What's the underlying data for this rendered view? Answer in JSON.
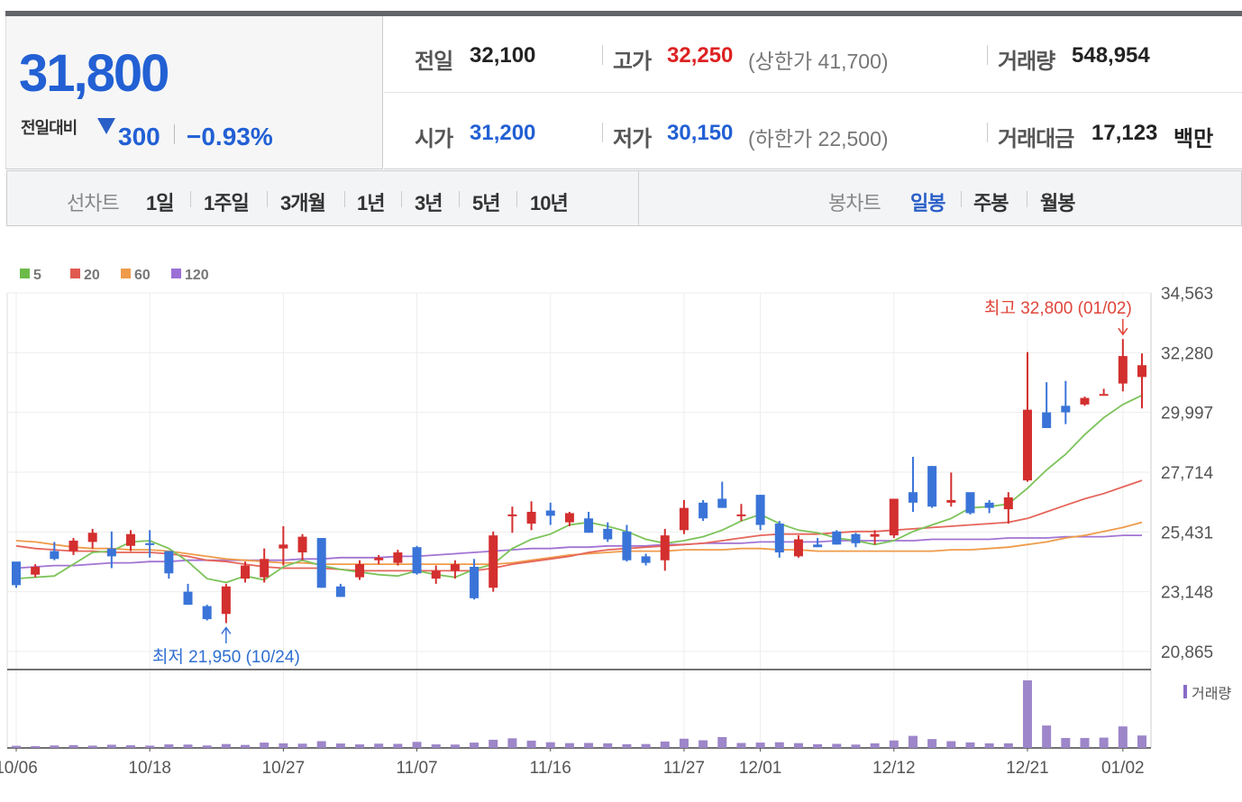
{
  "header": {
    "price": "31,800",
    "change_label": "전일대비",
    "change": "300",
    "change_pct": "−0.93%",
    "direction": "down",
    "prev_label": "전일",
    "prev": "32,100",
    "open_label": "시가",
    "open": "31,200",
    "high_label": "고가",
    "high": "32,250",
    "upper_limit_text": "(상한가 41,700)",
    "low_label": "저가",
    "low": "30,150",
    "lower_limit_text": "(하한가 22,500)",
    "volume_label": "거래량",
    "volume": "548,954",
    "amount_label": "거래대금",
    "amount": "17,123",
    "amount_unit": "백만"
  },
  "line_tabs": {
    "label": "선차트",
    "items": [
      "1일",
      "1주일",
      "3개월",
      "1년",
      "3년",
      "5년",
      "10년"
    ]
  },
  "candle_tabs": {
    "label": "봉차트",
    "items": [
      "일봉",
      "주봉",
      "월봉"
    ],
    "active": 0
  },
  "colors": {
    "up": "#d32f2f",
    "down": "#3a74d8",
    "ma5": "#7cc35a",
    "ma20": "#e5655a",
    "ma60": "#ef9b4a",
    "ma120": "#a274d4",
    "volume": "#9d86c9",
    "accent_blue": "#2260d4"
  },
  "chart_data": {
    "type": "candlestick",
    "legend": [
      {
        "name": "5",
        "color": "#6cbb4a"
      },
      {
        "name": "20",
        "color": "#e05a4f"
      },
      {
        "name": "60",
        "color": "#ef9b4a"
      },
      {
        "name": "120",
        "color": "#9b6fd6"
      }
    ],
    "y_ticks": [
      "34,563",
      "32,280",
      "29,997",
      "27,714",
      "25,431",
      "23,148",
      "20,865"
    ],
    "ylim": [
      20865,
      34563
    ],
    "x_ticks": [
      "10/06",
      "10/18",
      "10/27",
      "11/07",
      "11/16",
      "11/27",
      "12/01",
      "12/12",
      "12/21",
      "01/02"
    ],
    "x_tick_index": [
      0,
      7,
      14,
      21,
      28,
      35,
      39,
      46,
      53,
      58
    ],
    "volume_label": "거래량",
    "max_annotation": "최고 32,800 (01/02)",
    "max_index": 58,
    "max_value": 32800,
    "min_annotation": "최저 21,950 (10/24)",
    "min_index": 11,
    "min_value": 21950,
    "candles": [
      [
        24300,
        24200,
        23300,
        23400
      ],
      [
        23800,
        24200,
        23700,
        24100
      ],
      [
        24700,
        25050,
        24350,
        24400
      ],
      [
        24700,
        25200,
        24550,
        25100
      ],
      [
        25050,
        25550,
        24800,
        25400
      ],
      [
        24800,
        25450,
        24050,
        24500
      ],
      [
        24900,
        25500,
        24700,
        25350
      ],
      [
        25000,
        25500,
        24450,
        24950
      ],
      [
        24700,
        24700,
        23650,
        23850
      ],
      [
        23150,
        23450,
        22650,
        22650
      ],
      [
        22600,
        22650,
        22050,
        22100
      ],
      [
        22300,
        23450,
        21950,
        23350
      ],
      [
        23650,
        24300,
        23500,
        24150
      ],
      [
        23700,
        24800,
        23500,
        24400
      ],
      [
        24800,
        25650,
        24150,
        24950
      ],
      [
        24650,
        25350,
        24350,
        25250
      ],
      [
        25200,
        25200,
        23300,
        23300
      ],
      [
        23350,
        23450,
        22950,
        22950
      ],
      [
        23700,
        24350,
        23600,
        24200
      ],
      [
        24350,
        24550,
        24200,
        24450
      ],
      [
        24250,
        24750,
        24150,
        24650
      ],
      [
        24850,
        24900,
        23800,
        23850
      ],
      [
        23650,
        24150,
        23450,
        23950
      ],
      [
        23950,
        24350,
        23650,
        24200
      ],
      [
        24100,
        24400,
        22850,
        22900
      ],
      [
        23300,
        25450,
        23150,
        25300
      ],
      [
        26100,
        26400,
        25400,
        26100
      ],
      [
        25750,
        26600,
        25500,
        26200
      ],
      [
        26250,
        26550,
        25700,
        26050
      ],
      [
        25800,
        26200,
        25650,
        26150
      ],
      [
        25950,
        26200,
        25400,
        25400
      ],
      [
        25550,
        25800,
        25050,
        25150
      ],
      [
        25450,
        25700,
        24300,
        24350
      ],
      [
        24500,
        24600,
        24150,
        24250
      ],
      [
        24350,
        25550,
        23950,
        25300
      ],
      [
        25500,
        26650,
        25350,
        26350
      ],
      [
        26550,
        26650,
        25850,
        25950
      ],
      [
        26700,
        27350,
        26350,
        26350
      ],
      [
        26100,
        26500,
        25850,
        26100
      ],
      [
        26850,
        26850,
        25500,
        25700
      ],
      [
        25750,
        25850,
        24450,
        24650
      ],
      [
        24500,
        25300,
        24450,
        25150
      ],
      [
        24950,
        25200,
        24850,
        24850
      ],
      [
        25450,
        25500,
        24950,
        24950
      ],
      [
        25350,
        25400,
        24850,
        25000
      ],
      [
        25250,
        25500,
        24950,
        25350
      ],
      [
        25300,
        26650,
        25200,
        26700
      ],
      [
        26950,
        28300,
        26200,
        26550
      ],
      [
        27950,
        27950,
        26350,
        26400
      ],
      [
        26550,
        27700,
        26400,
        26650
      ],
      [
        26950,
        26900,
        26100,
        26150
      ],
      [
        26550,
        26650,
        26150,
        26350
      ],
      [
        26300,
        26950,
        25750,
        26750
      ],
      [
        27400,
        32300,
        27350,
        30100
      ],
      [
        30000,
        31150,
        29500,
        29400
      ],
      [
        30250,
        31200,
        29550,
        30000
      ],
      [
        30300,
        30600,
        30250,
        30550
      ],
      [
        30700,
        30900,
        30700,
        30700
      ],
      [
        31100,
        32800,
        30800,
        32150
      ],
      [
        31350,
        32250,
        30150,
        31800
      ]
    ],
    "ma5": [
      23650,
      23700,
      23750,
      24200,
      24650,
      24700,
      25050,
      25100,
      24800,
      24300,
      23650,
      23500,
      23750,
      23600,
      24100,
      24350,
      24150,
      24000,
      23900,
      23800,
      23750,
      23950,
      23800,
      23700,
      24000,
      24200,
      24800,
      25150,
      25350,
      25700,
      25800,
      25650,
      25450,
      25150,
      25000,
      25100,
      25250,
      25500,
      25850,
      26100,
      25750,
      25500,
      25400,
      25200,
      25100,
      24950,
      25100,
      25450,
      25700,
      25950,
      26350,
      26400,
      26500,
      27100,
      27800,
      28400,
      29150,
      29800,
      30300,
      30650
    ],
    "ma20": [
      24900,
      24800,
      24750,
      24700,
      24700,
      24650,
      24650,
      24650,
      24600,
      24500,
      24350,
      24300,
      24200,
      24100,
      24050,
      24050,
      24050,
      24000,
      23950,
      23950,
      23950,
      23950,
      23950,
      23950,
      23950,
      24050,
      24200,
      24300,
      24400,
      24500,
      24650,
      24750,
      24800,
      24850,
      24900,
      24950,
      25000,
      25100,
      25200,
      25300,
      25350,
      25350,
      25350,
      25400,
      25450,
      25450,
      25500,
      25550,
      25600,
      25650,
      25700,
      25750,
      25800,
      25950,
      26200,
      26450,
      26700,
      26900,
      27150,
      27400
    ],
    "ma60": [
      25100,
      25050,
      24950,
      24850,
      24800,
      24800,
      24750,
      24750,
      24700,
      24600,
      24500,
      24400,
      24350,
      24300,
      24250,
      24250,
      24200,
      24200,
      24200,
      24200,
      24200,
      24200,
      24200,
      24200,
      24200,
      24200,
      24250,
      24350,
      24450,
      24550,
      24600,
      24650,
      24700,
      24700,
      24700,
      24750,
      24750,
      24750,
      24800,
      24800,
      24750,
      24750,
      24700,
      24700,
      24700,
      24700,
      24700,
      24700,
      24700,
      24750,
      24750,
      24800,
      24850,
      24950,
      25050,
      25200,
      25300,
      25450,
      25600,
      25800
    ],
    "ma120": [
      24050,
      24100,
      24150,
      24150,
      24200,
      24250,
      24250,
      24300,
      24300,
      24350,
      24350,
      24350,
      24350,
      24350,
      24350,
      24400,
      24400,
      24450,
      24450,
      24450,
      24500,
      24500,
      24550,
      24600,
      24650,
      24700,
      24750,
      24800,
      24800,
      24850,
      24850,
      24900,
      24900,
      24900,
      24950,
      24950,
      25000,
      25000,
      25000,
      25050,
      25050,
      25050,
      25050,
      25100,
      25100,
      25100,
      25100,
      25100,
      25150,
      25150,
      25150,
      25150,
      25200,
      25200,
      25200,
      25250,
      25250,
      25250,
      25300,
      25300
    ],
    "volume": [
      120,
      90,
      140,
      160,
      130,
      180,
      150,
      130,
      200,
      190,
      140,
      220,
      170,
      300,
      260,
      240,
      380,
      250,
      200,
      240,
      230,
      340,
      200,
      190,
      300,
      460,
      540,
      410,
      320,
      270,
      280,
      260,
      210,
      220,
      360,
      520,
      430,
      610,
      280,
      300,
      320,
      270,
      210,
      230,
      190,
      260,
      420,
      680,
      500,
      380,
      310,
      260,
      260,
      3800,
      1260,
      560,
      560,
      580,
      1210,
      700
    ]
  }
}
